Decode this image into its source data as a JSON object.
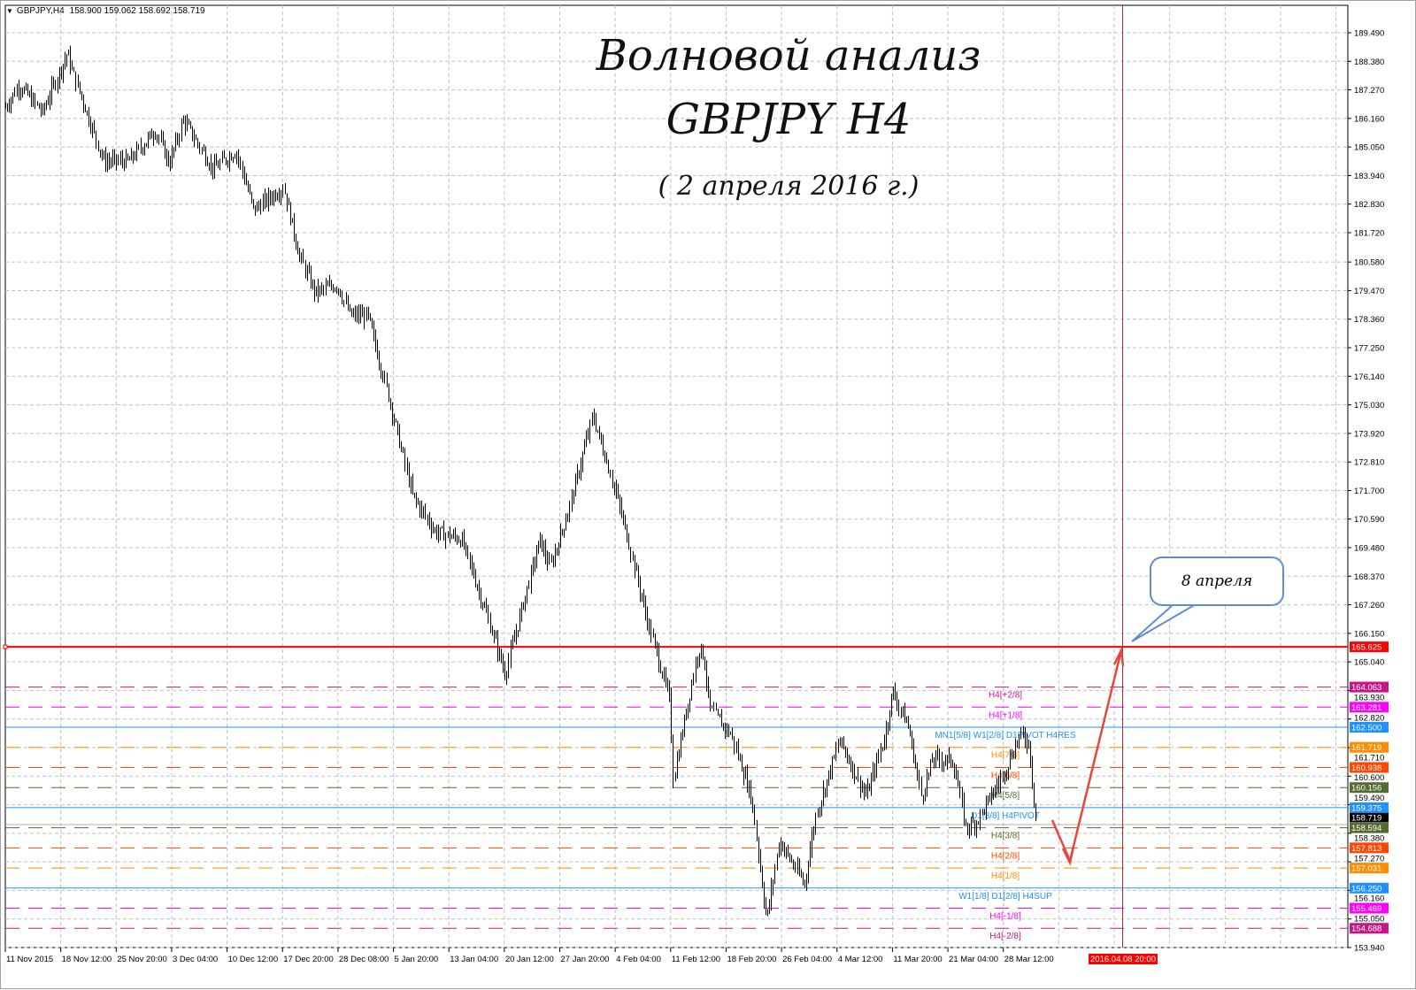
{
  "header": {
    "symbol": "GBPJPY,H4",
    "ohlc": "158.900 159.062 158.692 158.719"
  },
  "annotations": {
    "title_line1": "Волновой анализ",
    "title_line2": "GBPJPY H4",
    "title_line3": "( 2 апреля 2016 г.)",
    "callout": "8 апреля"
  },
  "chart_data": {
    "type": "bar",
    "subtype": "ohlc",
    "symbol": "GBPJPY",
    "timeframe": "H4",
    "ylim": [
      153.94,
      189.49
    ],
    "grid": true,
    "y_ticks": [
      "189.490",
      "188.380",
      "187.270",
      "186.160",
      "185.050",
      "183.940",
      "182.830",
      "181.720",
      "180.580",
      "179.470",
      "178.360",
      "177.250",
      "176.140",
      "175.030",
      "173.920",
      "172.810",
      "171.700",
      "170.590",
      "169.480",
      "168.370",
      "167.260",
      "166.150",
      "165.040",
      "163.930",
      "162.820",
      "161.710",
      "160.600",
      "159.490",
      "158.380",
      "157.270",
      "156.160",
      "155.050",
      "153.940"
    ],
    "x_ticks": [
      {
        "label": "11 Nov 2015",
        "t": "2015-11-11T00:00"
      },
      {
        "label": "18 Nov 12:00",
        "t": "2015-11-18T12:00"
      },
      {
        "label": "25 Nov 20:00",
        "t": "2015-11-25T20:00"
      },
      {
        "label": "3 Dec 04:00",
        "t": "2015-12-03T04:00"
      },
      {
        "label": "10 Dec 12:00",
        "t": "2015-12-10T12:00"
      },
      {
        "label": "17 Dec 20:00",
        "t": "2015-12-17T20:00"
      },
      {
        "label": "28 Dec 08:00",
        "t": "2015-12-28T08:00"
      },
      {
        "label": "5 Jan 20:00",
        "t": "2016-01-05T20:00"
      },
      {
        "label": "13 Jan 04:00",
        "t": "2016-01-13T04:00"
      },
      {
        "label": "20 Jan 12:00",
        "t": "2016-01-20T12:00"
      },
      {
        "label": "27 Jan 20:00",
        "t": "2016-01-27T20:00"
      },
      {
        "label": "4 Feb 04:00",
        "t": "2016-02-04T04:00"
      },
      {
        "label": "11 Feb 12:00",
        "t": "2016-02-11T12:00"
      },
      {
        "label": "18 Feb 20:00",
        "t": "2016-02-18T20:00"
      },
      {
        "label": "26 Feb 04:00",
        "t": "2016-02-26T04:00"
      },
      {
        "label": "4 Mar 12:00",
        "t": "2016-03-04T12:00"
      },
      {
        "label": "11 Mar 20:00",
        "t": "2016-03-11T20:00"
      },
      {
        "label": "21 Mar 04:00",
        "t": "2016-03-21T04:00"
      },
      {
        "label": "28 Mar 12:00",
        "t": "2016-03-28T12:00"
      }
    ],
    "price_path": [
      [
        "2015-11-11T00:00",
        186.6
      ],
      [
        "2015-11-12T20:00",
        187.46
      ],
      [
        "2015-11-16T00:00",
        186.4
      ],
      [
        "2015-11-19T08:00",
        188.7
      ],
      [
        "2015-11-20T00:00",
        188.0
      ],
      [
        "2015-11-24T04:00",
        184.5
      ],
      [
        "2015-11-27T12:00",
        184.5
      ],
      [
        "2015-12-01T00:00",
        185.7
      ],
      [
        "2015-12-02T20:00",
        184.4
      ],
      [
        "2015-12-04T16:00",
        186.1
      ],
      [
        "2015-12-08T16:00",
        184.2
      ],
      [
        "2015-12-11T16:00",
        184.9
      ],
      [
        "2015-12-14T00:00",
        182.6
      ],
      [
        "2015-12-18T00:00",
        183.5
      ],
      [
        "2015-12-21T00:00",
        180.8
      ],
      [
        "2015-12-24T00:00",
        179.4
      ],
      [
        "2015-12-28T04:00",
        179.7
      ],
      [
        "2015-12-30T04:00",
        178.5
      ],
      [
        "2016-01-01T20:00",
        178.5
      ],
      [
        "2016-01-04T20:00",
        175.6
      ],
      [
        "2016-01-08T08:00",
        171.5
      ],
      [
        "2016-01-11T08:00",
        170.1
      ],
      [
        "2016-01-14T20:00",
        169.8
      ],
      [
        "2016-01-18T00:00",
        167.0
      ],
      [
        "2016-01-20T14:00",
        164.6
      ],
      [
        "2016-01-21T20:00",
        166.0
      ],
      [
        "2016-01-25T04:00",
        169.8
      ],
      [
        "2016-01-26T12:00",
        168.7
      ],
      [
        "2016-01-28T20:00",
        170.8
      ],
      [
        "2016-02-01T04:00",
        174.6
      ],
      [
        "2016-02-03T16:00",
        172.2
      ],
      [
        "2016-02-05T20:00",
        169.8
      ],
      [
        "2016-02-08T08:00",
        166.7
      ],
      [
        "2016-02-11T08:00",
        163.6
      ],
      [
        "2016-02-11T20:00",
        160.5
      ],
      [
        "2016-02-15T04:00",
        165.6
      ],
      [
        "2016-02-15T20:00",
        165.3
      ],
      [
        "2016-02-16T16:00",
        163.2
      ],
      [
        "2016-02-19T12:00",
        162.2
      ],
      [
        "2016-02-22T04:00",
        159.8
      ],
      [
        "2016-02-24T04:00",
        155.0
      ],
      [
        "2016-02-25T20:00",
        158.1
      ],
      [
        "2016-02-29T04:00",
        156.4
      ],
      [
        "2016-03-01T16:00",
        159.1
      ],
      [
        "2016-03-04T20:00",
        162.0
      ],
      [
        "2016-03-08T08:00",
        159.8
      ],
      [
        "2016-03-10T20:00",
        162.2
      ],
      [
        "2016-03-11T20:00",
        163.9
      ],
      [
        "2016-03-14T12:00",
        162.5
      ],
      [
        "2016-03-16T16:00",
        159.8
      ],
      [
        "2016-03-18T16:00",
        161.3
      ],
      [
        "2016-03-21T20:00",
        161.2
      ],
      [
        "2016-03-23T12:00",
        158.6
      ],
      [
        "2016-03-24T20:00",
        158.8
      ],
      [
        "2016-03-28T04:00",
        160.5
      ],
      [
        "2016-03-30T16:00",
        162.2
      ],
      [
        "2016-03-31T20:00",
        161.9
      ],
      [
        "2016-04-01T20:00",
        158.72
      ]
    ],
    "levels": [
      {
        "price": "165.625",
        "color": "#ff0000",
        "style": "solid",
        "label": ""
      },
      {
        "price": "164.063",
        "color": "#c71585",
        "style": "dashed",
        "label": "H4[+2/8]"
      },
      {
        "price": "163.281",
        "color": "#ff00ff",
        "style": "dashed",
        "label": "H4[+1/8]"
      },
      {
        "price": "162.500",
        "color": "#1e90ff",
        "style": "solid",
        "label": "MN1[5/8] W1[2/8] D1PIVOT H4RES"
      },
      {
        "price": "161.719",
        "color": "#ff8c00",
        "style": "dashed",
        "label": "H4[7/8]"
      },
      {
        "price": "160.938",
        "color": "#ff4500",
        "style": "dashed",
        "label": "H4[6/8]"
      },
      {
        "price": "160.156",
        "color": "#556b2f",
        "style": "dashed",
        "label": "H4[5/8]"
      },
      {
        "price": "159.375",
        "color": "#1e90ff",
        "style": "solid",
        "label": "D1[3/8] H4PIVOT"
      },
      {
        "price": "158.594",
        "color": "#556b2f",
        "style": "dashed",
        "label": "H4[3/8]"
      },
      {
        "price": "157.813",
        "color": "#ff4500",
        "style": "dashed",
        "label": "H4[2/8]"
      },
      {
        "price": "157.031",
        "color": "#ff8c00",
        "style": "dashed",
        "label": "H4[1/8]"
      },
      {
        "price": "156.250",
        "color": "#1e90ff",
        "style": "solid",
        "label": "W1[1/8] D1[2/8] H4SUP"
      },
      {
        "price": "155.469",
        "color": "#ff00ff",
        "style": "dashed",
        "label": "H4[-1/8]"
      },
      {
        "price": "154.688",
        "color": "#c71585",
        "style": "dashed",
        "label": "H4[-2/8]"
      }
    ],
    "bid_price": "158.719",
    "vline_time_label": "2016.04.08 20:00",
    "colors": {
      "bars": "#000000",
      "grid": "#c0c0c0",
      "arrow": "#e8463c",
      "vline": "#a03030",
      "callout_border": "#5b8fd0"
    }
  }
}
